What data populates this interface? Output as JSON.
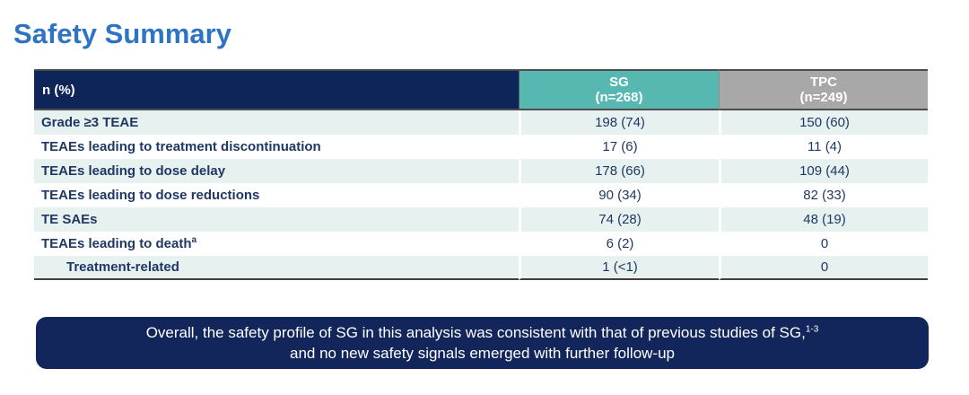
{
  "page": {
    "title": "Safety Summary"
  },
  "colors": {
    "title_blue": "#2E74C4",
    "header_navy": "#0D2559",
    "sg_teal": "#56B8B1",
    "tpc_gray": "#A8A8A8",
    "row_teal": "#E6F1F0",
    "text_navy": "#1F3864",
    "banner_navy": "#13265B"
  },
  "table": {
    "header": {
      "col1": "n (%)",
      "col2_line1": "SG",
      "col2_line2": "(n=268)",
      "col3_line1": "TPC",
      "col3_line2": "(n=249)"
    },
    "rows": [
      {
        "label": "Grade ≥3 TEAE",
        "sg": "198 (74)",
        "tpc": "150 (60)"
      },
      {
        "label": "TEAEs leading to treatment discontinuation",
        "sg": "17 (6)",
        "tpc": "11 (4)"
      },
      {
        "label": "TEAEs leading to dose delay",
        "sg": "178 (66)",
        "tpc": "109 (44)"
      },
      {
        "label": "TEAEs leading to dose reductions",
        "sg": "90 (34)",
        "tpc": "82 (33)"
      },
      {
        "label": "TE SAEs",
        "sg": "74 (28)",
        "tpc": "48 (19)"
      },
      {
        "label": "TEAEs leading to death",
        "label_sup": "a",
        "sg": "6 (2)",
        "tpc": "0"
      },
      {
        "label": "Treatment-related",
        "sg": "1 (<1)",
        "tpc": "0"
      }
    ]
  },
  "banner": {
    "line1": "Overall, the safety profile of SG in this analysis was consistent with that of previous studies of SG,",
    "line1_sup": "1-3",
    "line2": "and no new safety signals emerged with further follow-up"
  }
}
